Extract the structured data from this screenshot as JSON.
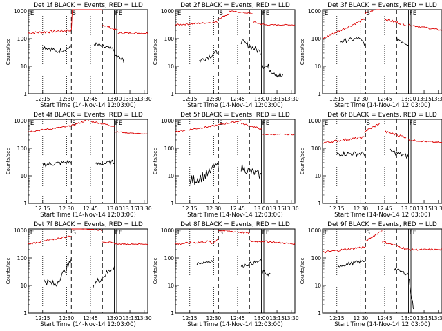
{
  "chart_data": [
    {
      "type": "line",
      "title": "Det 1f BLACK = Events, RED = LLD",
      "ylabel": "Counts/sec",
      "xlabel": "Start Time (14-Nov-14 12:03:00)",
      "markers": [
        "E",
        "S",
        "FE"
      ],
      "x_ticks": [
        "12:15",
        "12:30",
        "12:45",
        "13:00",
        "13:15",
        "13:30"
      ],
      "y_ticks": [
        "1",
        "10",
        "100",
        "1000"
      ],
      "series": [
        {
          "color": "#dd0000",
          "values": [],
          "desc": "LLD ~170 c/s, rises to >1000 at ~12:40"
        },
        {
          "color": "#000000",
          "values": [],
          "desc": "events ~50 c/s"
        }
      ]
    },
    {
      "type": "line",
      "title": "Det 2f BLACK = Events, RED = LLD",
      "ylabel": "Counts/sec",
      "xlabel": "Start Time (14-Nov-14 12:03:00)",
      "markers": [
        "E",
        "S",
        "FE"
      ],
      "x_ticks": [
        "12:15",
        "12:30",
        "12:45",
        "13:00",
        "13:15",
        "13:30"
      ],
      "y_ticks": [
        "1",
        "10",
        "100",
        "1000"
      ],
      "series": [
        {
          "color": "#dd0000",
          "values": []
        },
        {
          "color": "#000000",
          "values": []
        }
      ]
    },
    {
      "type": "line",
      "title": "Det 3f BLACK = Events, RED = LLD",
      "ylabel": "Counts/sec",
      "xlabel": "Start Time (14-Nov-14 12:03:00)",
      "markers": [
        "E",
        "S",
        "FE"
      ],
      "x_ticks": [
        "12:15",
        "12:30",
        "12:45",
        "13:00",
        "13:15",
        "13:30"
      ],
      "y_ticks": [
        "1",
        "10",
        "100",
        "1000"
      ],
      "series": [
        {
          "color": "#dd0000",
          "values": []
        },
        {
          "color": "#000000",
          "values": []
        }
      ]
    },
    {
      "type": "line",
      "title": "Det 4f BLACK = Events, RED = LLD",
      "ylabel": "Counts/sec",
      "xlabel": "Start Time (14-Nov-14 12:03:00)",
      "markers": [
        "E",
        "S",
        "FE"
      ],
      "x_ticks": [
        "12:15",
        "12:30",
        "12:45",
        "13:00",
        "13:15",
        "13:30"
      ],
      "y_ticks": [
        "1",
        "10",
        "100",
        "1000"
      ],
      "series": [
        {
          "color": "#dd0000",
          "values": []
        },
        {
          "color": "#000000",
          "values": []
        }
      ]
    },
    {
      "type": "line",
      "title": "Det 5f BLACK = Events, RED = LLD",
      "ylabel": "Counts/sec",
      "xlabel": "Start Time (14-Nov-14 12:03:00)",
      "markers": [
        "E",
        "S",
        "FE"
      ],
      "x_ticks": [
        "12:15",
        "12:30",
        "12:45",
        "13:00",
        "13:15",
        "13:30"
      ],
      "y_ticks": [
        "1",
        "10",
        "100",
        "1000"
      ],
      "series": [
        {
          "color": "#dd0000",
          "values": []
        },
        {
          "color": "#000000",
          "values": []
        }
      ]
    },
    {
      "type": "line",
      "title": "Det 6f BLACK = Events, RED = LLD",
      "ylabel": "Counts/sec",
      "xlabel": "Start Time (14-Nov-14 12:03:00)",
      "markers": [
        "E",
        "S",
        "FE"
      ],
      "x_ticks": [
        "12:15",
        "12:30",
        "12:45",
        "13:00",
        "13:15",
        "13:30"
      ],
      "y_ticks": [
        "1",
        "10",
        "100",
        "1000"
      ],
      "series": [
        {
          "color": "#dd0000",
          "values": []
        },
        {
          "color": "#000000",
          "values": []
        }
      ]
    },
    {
      "type": "line",
      "title": "Det 7f BLACK = Events, RED = LLD",
      "ylabel": "Counts/sec",
      "xlabel": "Start Time (14-Nov-14 12:03:00)",
      "markers": [
        "E",
        "S",
        "FE"
      ],
      "x_ticks": [
        "12:15",
        "12:30",
        "12:45",
        "13:00",
        "13:15",
        "13:30"
      ],
      "y_ticks": [
        "1",
        "10",
        "100",
        "1000"
      ],
      "series": [
        {
          "color": "#dd0000",
          "values": []
        },
        {
          "color": "#000000",
          "values": []
        }
      ]
    },
    {
      "type": "line",
      "title": "Det 8f BLACK = Events, RED = LLD",
      "ylabel": "Counts/sec",
      "xlabel": "Start Time (14-Nov-14 12:03:00)",
      "markers": [
        "E",
        "S",
        "FE"
      ],
      "x_ticks": [
        "12:15",
        "12:30",
        "12:45",
        "13:00",
        "13:15",
        "13:30"
      ],
      "y_ticks": [
        "1",
        "10",
        "100",
        "1000"
      ],
      "series": [
        {
          "color": "#dd0000",
          "values": []
        },
        {
          "color": "#000000",
          "values": []
        }
      ]
    },
    {
      "type": "line",
      "title": "Det 9f BLACK = Events, RED = LLD",
      "ylabel": "Counts/sec",
      "xlabel": "Start Time (14-Nov-14 12:03:00)",
      "markers": [
        "E",
        "S",
        "FE"
      ],
      "x_ticks": [
        "12:15",
        "12:30",
        "12:45",
        "13:00",
        "13:15",
        "13:30"
      ],
      "y_ticks": [
        "1",
        "10",
        "100",
        "1000"
      ],
      "series": [
        {
          "color": "#dd0000",
          "values": []
        },
        {
          "color": "#000000",
          "values": []
        }
      ]
    }
  ]
}
